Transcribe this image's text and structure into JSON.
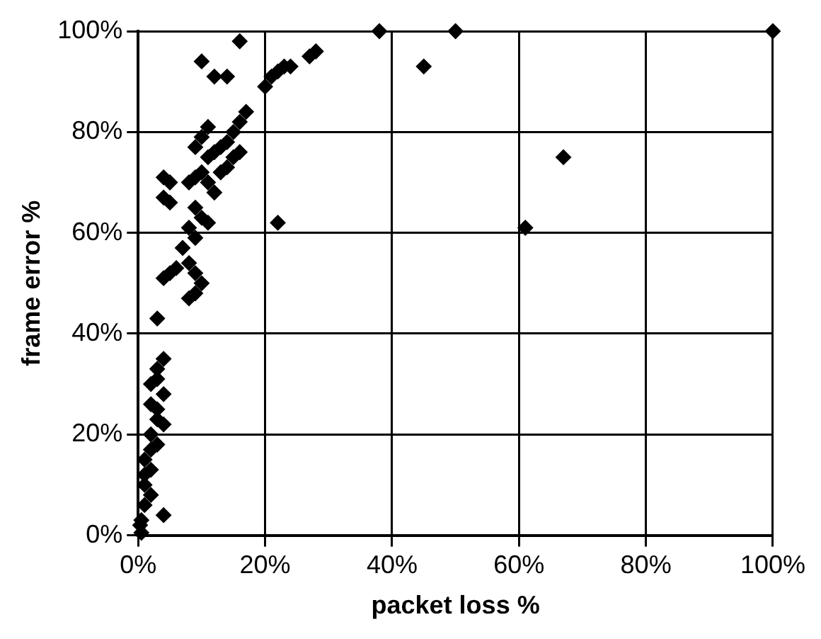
{
  "chart_data": {
    "type": "scatter",
    "xlabel": "packet loss %",
    "ylabel": "frame error %",
    "marker": "diamond",
    "grid": true,
    "legend": false,
    "xlim": [
      0,
      100
    ],
    "ylim": [
      0,
      100
    ],
    "xticks": [
      {
        "value": 0,
        "label": "0%"
      },
      {
        "value": 20,
        "label": "20%"
      },
      {
        "value": 40,
        "label": "40%"
      },
      {
        "value": 60,
        "label": "60%"
      },
      {
        "value": 80,
        "label": "80%"
      },
      {
        "value": 100,
        "label": "100%"
      }
    ],
    "yticks": [
      {
        "value": 0,
        "label": "0%"
      },
      {
        "value": 20,
        "label": "20%"
      },
      {
        "value": 40,
        "label": "40%"
      },
      {
        "value": 60,
        "label": "60%"
      },
      {
        "value": 80,
        "label": "80%"
      },
      {
        "value": 100,
        "label": "100%"
      }
    ],
    "series": [
      {
        "color": "#000000",
        "x": [
          38,
          45,
          50,
          61,
          67,
          100,
          22,
          16,
          10,
          12,
          14,
          20,
          21,
          22,
          23,
          24,
          27,
          28,
          17,
          16,
          15,
          14,
          13,
          12,
          11,
          10,
          9,
          11,
          10,
          9,
          8,
          11,
          12,
          9,
          10,
          11,
          8,
          9,
          7,
          8,
          6,
          9,
          10,
          9,
          8,
          4,
          5,
          4,
          5,
          5,
          4,
          3,
          14,
          13,
          15,
          16,
          4,
          3,
          3,
          2,
          4,
          2,
          3,
          3,
          4,
          2,
          3,
          2,
          1,
          2,
          1,
          1,
          2,
          1,
          4,
          0.5,
          0.3,
          0.5
        ],
        "values": [
          100,
          93,
          100,
          61,
          75,
          100,
          62,
          98,
          94,
          91,
          91,
          89,
          91,
          92,
          93,
          93,
          95,
          96,
          84,
          82,
          80,
          78,
          77,
          76,
          75,
          79,
          77,
          81,
          72,
          71,
          70,
          70,
          68,
          65,
          63,
          62,
          61,
          59,
          57,
          54,
          53,
          52,
          50,
          48,
          47,
          71,
          70,
          67,
          66,
          52,
          51,
          43,
          73,
          72,
          75,
          76,
          35,
          33,
          31,
          30,
          28,
          26,
          25,
          23,
          22,
          20,
          18,
          17,
          15,
          13,
          12,
          10,
          8,
          6,
          4,
          3,
          2,
          0.5
        ]
      }
    ]
  }
}
